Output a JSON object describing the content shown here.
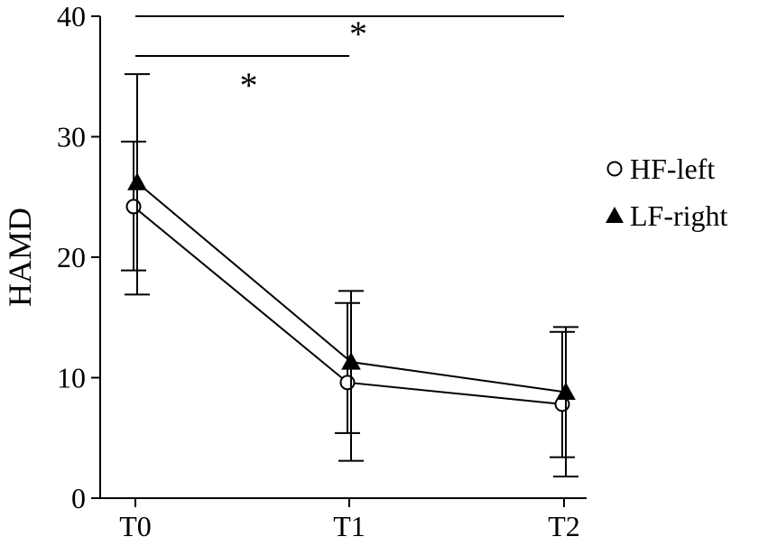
{
  "chart_data": {
    "type": "line",
    "title": "",
    "xlabel": "",
    "ylabel": "HAMD",
    "ylim": [
      0,
      40
    ],
    "yticks": [
      0,
      10,
      20,
      30,
      40
    ],
    "categories": [
      "T0",
      "T1",
      "T2"
    ],
    "grid": false,
    "legend_position": "right",
    "series": [
      {
        "name": "HF-left",
        "marker": "open-circle",
        "values": [
          24.2,
          9.6,
          7.8
        ],
        "error_upper": [
          29.6,
          16.2,
          13.8
        ],
        "error_lower": [
          18.9,
          5.4,
          3.4
        ]
      },
      {
        "name": "LF-right",
        "marker": "filled-triangle",
        "values": [
          26.2,
          11.3,
          8.8
        ],
        "error_upper": [
          35.2,
          17.2,
          14.2
        ],
        "error_lower": [
          16.9,
          3.1,
          1.8
        ]
      }
    ],
    "annotations": [
      {
        "from": "T0",
        "to": "T1",
        "level": 36.7,
        "label": "*"
      },
      {
        "from": "T0",
        "to": "T2",
        "level": 40,
        "label": "*"
      }
    ],
    "colors": {
      "line": "#000000",
      "marker_fill_open": "#ffffff",
      "marker_fill_solid": "#000000"
    }
  }
}
